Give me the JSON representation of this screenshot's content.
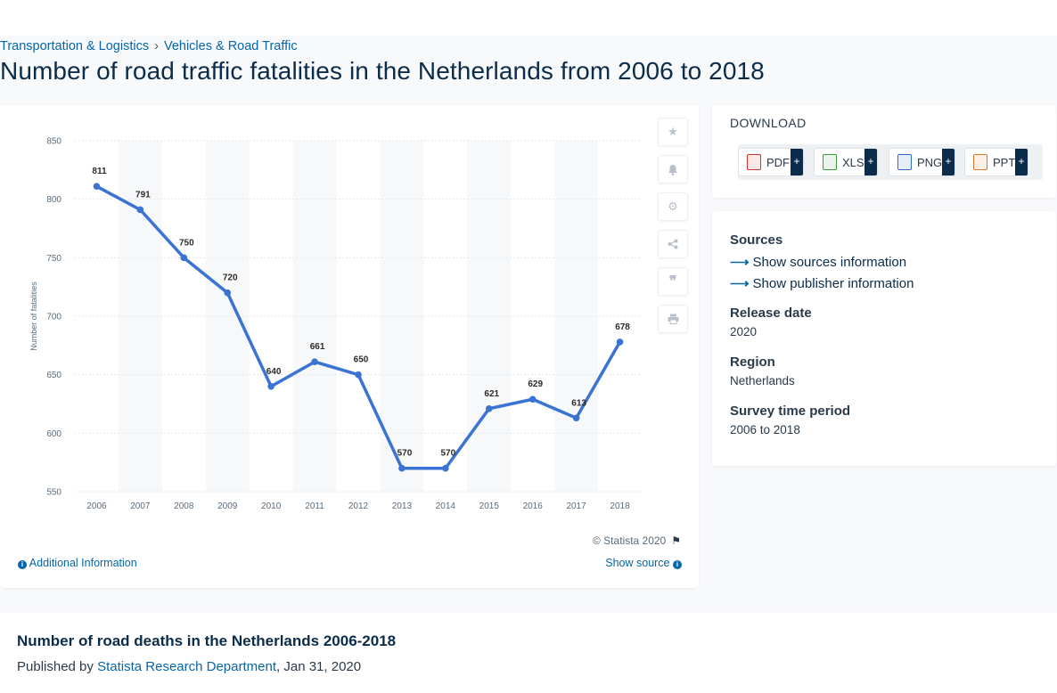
{
  "breadcrumb": {
    "items": [
      "Transportation & Logistics",
      "Vehicles & Road Traffic"
    ],
    "separator": "›"
  },
  "page": {
    "title": "Number of road traffic fatalities in the Netherlands from 2006 to 2018"
  },
  "chart_data": {
    "type": "line",
    "title": "",
    "xlabel": "",
    "ylabel": "Number of fatalities",
    "categories": [
      "2006",
      "2007",
      "2008",
      "2009",
      "2010",
      "2011",
      "2012",
      "2013",
      "2014",
      "2015",
      "2016",
      "2017",
      "2018"
    ],
    "series": [
      {
        "values": [
          811,
          791,
          750,
          720,
          640,
          661,
          650,
          570,
          570,
          621,
          629,
          613,
          678
        ]
      }
    ],
    "ylim": [
      550,
      850
    ],
    "yticks": [
      550,
      600,
      650,
      700,
      750,
      800,
      850
    ],
    "data_labels": true,
    "grid": true,
    "line_color": "#3a73d3",
    "alt_column_bands": true
  },
  "chart_footer": {
    "copyright": "© Statista 2020",
    "additional_info": "Additional Information",
    "show_source": "Show source"
  },
  "toolbar_icons": [
    "star-icon",
    "bell-icon",
    "gear-icon",
    "share-icon",
    "quote-icon",
    "print-icon"
  ],
  "download": {
    "heading": "DOWNLOAD",
    "buttons": [
      {
        "label": "PDF",
        "plus": "+",
        "color": "#d0342c"
      },
      {
        "label": "XLS",
        "plus": "+",
        "color": "#3a9b3a"
      },
      {
        "label": "PNG",
        "plus": "+",
        "color": "#2f6fc0"
      },
      {
        "label": "PPT",
        "plus": "+",
        "color": "#e07a2c"
      }
    ]
  },
  "info": {
    "sources_label": "Sources",
    "show_sources": "Show sources information",
    "show_publisher": "Show publisher information",
    "release_date_label": "Release date",
    "release_date": "2020",
    "region_label": "Region",
    "region": "Netherlands",
    "survey_label": "Survey time period",
    "survey": "2006 to 2018"
  },
  "description": {
    "title": "Number of road deaths in the Netherlands 2006-2018",
    "published_prefix": "Published by",
    "publisher": "Statista Research Department",
    "date": ", Jan 31, 2020"
  }
}
